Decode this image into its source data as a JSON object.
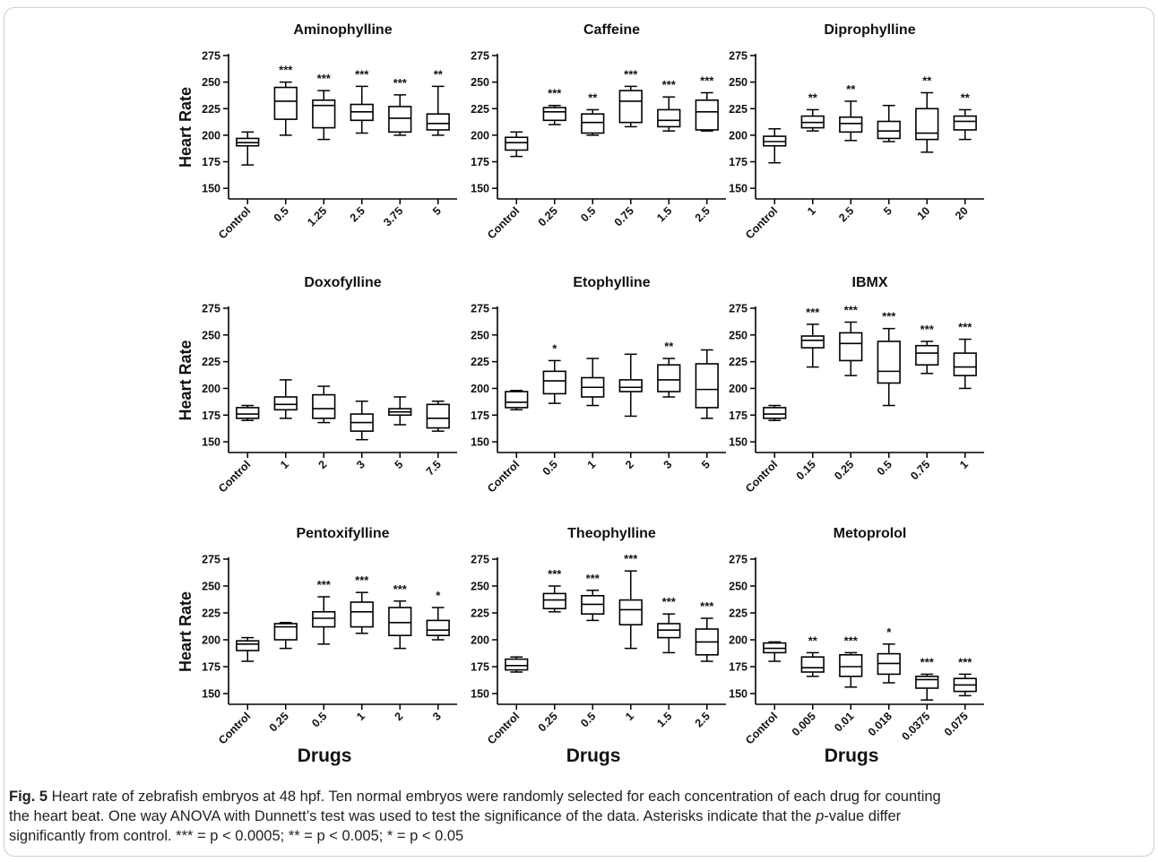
{
  "figure": {
    "caption": {
      "label": "Fig. 5",
      "line1": " Heart rate of zebrafish embryos at 48 hpf. Ten normal embryos were randomly selected for each concentration of each drug for counting",
      "line2": "the heart beat. One way ANOVA with Dunnett’s test was used to test the significance of the data. Asterisks indicate that the ",
      "pvar": "p",
      "line2b": "-value differ",
      "line3": "significantly from control. *** = p < 0.0005; ** = p < 0.005; * = p < 0.05"
    }
  },
  "chart_data": [
    {
      "type": "box",
      "title": "Aminophylline",
      "ylabel": "Heart Rate",
      "xlabel": "",
      "ylim": [
        140,
        275
      ],
      "yticks": [
        150,
        175,
        200,
        225,
        250,
        275
      ],
      "categories": [
        "Control",
        "0.5",
        "1.25",
        "2.5",
        "3.75",
        "5"
      ],
      "boxes": [
        {
          "min": 172,
          "q1": 190,
          "median": 193,
          "q3": 197,
          "max": 203,
          "sig": ""
        },
        {
          "min": 200,
          "q1": 215,
          "median": 232,
          "q3": 245,
          "max": 250,
          "sig": "***"
        },
        {
          "min": 196,
          "q1": 207,
          "median": 228,
          "q3": 233,
          "max": 242,
          "sig": "***"
        },
        {
          "min": 202,
          "q1": 214,
          "median": 222,
          "q3": 229,
          "max": 246,
          "sig": "***"
        },
        {
          "min": 200,
          "q1": 203,
          "median": 216,
          "q3": 227,
          "max": 238,
          "sig": "***"
        },
        {
          "min": 200,
          "q1": 205,
          "median": 211,
          "q3": 220,
          "max": 246,
          "sig": "**"
        }
      ]
    },
    {
      "type": "box",
      "title": "Caffeine",
      "ylabel": "",
      "xlabel": "",
      "ylim": [
        140,
        275
      ],
      "yticks": [
        150,
        175,
        200,
        225,
        250,
        275
      ],
      "categories": [
        "Control",
        "0.25",
        "0.5",
        "0.75",
        "1.5",
        "2.5"
      ],
      "boxes": [
        {
          "min": 180,
          "q1": 186,
          "median": 193,
          "q3": 198,
          "max": 203,
          "sig": ""
        },
        {
          "min": 210,
          "q1": 214,
          "median": 222,
          "q3": 226,
          "max": 228,
          "sig": "***"
        },
        {
          "min": 200,
          "q1": 202,
          "median": 212,
          "q3": 220,
          "max": 224,
          "sig": "**"
        },
        {
          "min": 208,
          "q1": 212,
          "median": 232,
          "q3": 242,
          "max": 246,
          "sig": "***"
        },
        {
          "min": 204,
          "q1": 208,
          "median": 214,
          "q3": 224,
          "max": 236,
          "sig": "***"
        },
        {
          "min": 204,
          "q1": 205,
          "median": 222,
          "q3": 233,
          "max": 240,
          "sig": "***"
        }
      ]
    },
    {
      "type": "box",
      "title": "Diprophylline",
      "ylabel": "",
      "xlabel": "",
      "ylim": [
        140,
        275
      ],
      "yticks": [
        150,
        175,
        200,
        225,
        250,
        275
      ],
      "categories": [
        "Control",
        "1",
        "2.5",
        "5",
        "10",
        "20"
      ],
      "boxes": [
        {
          "min": 174,
          "q1": 190,
          "median": 194,
          "q3": 199,
          "max": 206,
          "sig": ""
        },
        {
          "min": 204,
          "q1": 207,
          "median": 212,
          "q3": 218,
          "max": 224,
          "sig": "**"
        },
        {
          "min": 195,
          "q1": 203,
          "median": 211,
          "q3": 217,
          "max": 232,
          "sig": "**"
        },
        {
          "min": 194,
          "q1": 197,
          "median": 204,
          "q3": 213,
          "max": 228,
          "sig": ""
        },
        {
          "min": 184,
          "q1": 196,
          "median": 202,
          "q3": 225,
          "max": 240,
          "sig": "**"
        },
        {
          "min": 196,
          "q1": 205,
          "median": 213,
          "q3": 218,
          "max": 224,
          "sig": "**"
        }
      ]
    },
    {
      "type": "box",
      "title": "Doxofylline",
      "ylabel": "Heart Rate",
      "xlabel": "",
      "ylim": [
        140,
        275
      ],
      "yticks": [
        150,
        175,
        200,
        225,
        250,
        275
      ],
      "categories": [
        "Control",
        "1",
        "2",
        "3",
        "5",
        "7.5"
      ],
      "boxes": [
        {
          "min": 170,
          "q1": 172,
          "median": 176,
          "q3": 182,
          "max": 184,
          "sig": ""
        },
        {
          "min": 172,
          "q1": 180,
          "median": 185,
          "q3": 192,
          "max": 208,
          "sig": ""
        },
        {
          "min": 168,
          "q1": 172,
          "median": 181,
          "q3": 194,
          "max": 202,
          "sig": ""
        },
        {
          "min": 152,
          "q1": 160,
          "median": 168,
          "q3": 176,
          "max": 188,
          "sig": ""
        },
        {
          "min": 166,
          "q1": 175,
          "median": 178,
          "q3": 181,
          "max": 192,
          "sig": ""
        },
        {
          "min": 160,
          "q1": 163,
          "median": 172,
          "q3": 185,
          "max": 188,
          "sig": ""
        }
      ]
    },
    {
      "type": "box",
      "title": "Etophylline",
      "ylabel": "",
      "xlabel": "",
      "ylim": [
        140,
        275
      ],
      "yticks": [
        150,
        175,
        200,
        225,
        250,
        275
      ],
      "categories": [
        "Control",
        "0.5",
        "1",
        "2",
        "3",
        "5"
      ],
      "boxes": [
        {
          "min": 180,
          "q1": 182,
          "median": 187,
          "q3": 197,
          "max": 198,
          "sig": ""
        },
        {
          "min": 186,
          "q1": 195,
          "median": 207,
          "q3": 216,
          "max": 226,
          "sig": "*"
        },
        {
          "min": 184,
          "q1": 192,
          "median": 201,
          "q3": 210,
          "max": 228,
          "sig": ""
        },
        {
          "min": 174,
          "q1": 197,
          "median": 201,
          "q3": 208,
          "max": 232,
          "sig": ""
        },
        {
          "min": 192,
          "q1": 197,
          "median": 208,
          "q3": 222,
          "max": 228,
          "sig": "**"
        },
        {
          "min": 172,
          "q1": 182,
          "median": 199,
          "q3": 223,
          "max": 236,
          "sig": ""
        }
      ]
    },
    {
      "type": "box",
      "title": "IBMX",
      "ylabel": "",
      "xlabel": "",
      "ylim": [
        140,
        275
      ],
      "yticks": [
        150,
        175,
        200,
        225,
        250,
        275
      ],
      "categories": [
        "Control",
        "0.15",
        "0.25",
        "0.5",
        "0.75",
        "1"
      ],
      "boxes": [
        {
          "min": 170,
          "q1": 172,
          "median": 176,
          "q3": 182,
          "max": 184,
          "sig": ""
        },
        {
          "min": 220,
          "q1": 238,
          "median": 245,
          "q3": 249,
          "max": 260,
          "sig": "***"
        },
        {
          "min": 212,
          "q1": 226,
          "median": 242,
          "q3": 252,
          "max": 262,
          "sig": "***"
        },
        {
          "min": 184,
          "q1": 205,
          "median": 216,
          "q3": 244,
          "max": 256,
          "sig": "***"
        },
        {
          "min": 214,
          "q1": 222,
          "median": 233,
          "q3": 240,
          "max": 244,
          "sig": "***"
        },
        {
          "min": 200,
          "q1": 212,
          "median": 220,
          "q3": 233,
          "max": 246,
          "sig": "***"
        }
      ]
    },
    {
      "type": "box",
      "title": "Pentoxifylline",
      "ylabel": "Heart Rate",
      "xlabel": "Drugs",
      "ylim": [
        140,
        275
      ],
      "yticks": [
        150,
        175,
        200,
        225,
        250,
        275
      ],
      "categories": [
        "Control",
        "0.25",
        "0.5",
        "1",
        "2",
        "3"
      ],
      "boxes": [
        {
          "min": 180,
          "q1": 190,
          "median": 196,
          "q3": 199,
          "max": 202,
          "sig": ""
        },
        {
          "min": 192,
          "q1": 200,
          "median": 212,
          "q3": 215,
          "max": 216,
          "sig": ""
        },
        {
          "min": 196,
          "q1": 212,
          "median": 220,
          "q3": 226,
          "max": 240,
          "sig": "***"
        },
        {
          "min": 206,
          "q1": 212,
          "median": 226,
          "q3": 235,
          "max": 244,
          "sig": "***"
        },
        {
          "min": 192,
          "q1": 204,
          "median": 216,
          "q3": 230,
          "max": 236,
          "sig": "***"
        },
        {
          "min": 200,
          "q1": 204,
          "median": 209,
          "q3": 218,
          "max": 230,
          "sig": "*"
        }
      ]
    },
    {
      "type": "box",
      "title": "Theophylline",
      "ylabel": "",
      "xlabel": "Drugs",
      "ylim": [
        140,
        275
      ],
      "yticks": [
        150,
        175,
        200,
        225,
        250,
        275
      ],
      "categories": [
        "Control",
        "0.25",
        "0.5",
        "1",
        "1.5",
        "2.5"
      ],
      "boxes": [
        {
          "min": 170,
          "q1": 172,
          "median": 176,
          "q3": 182,
          "max": 184,
          "sig": ""
        },
        {
          "min": 226,
          "q1": 229,
          "median": 237,
          "q3": 243,
          "max": 250,
          "sig": "***"
        },
        {
          "min": 218,
          "q1": 224,
          "median": 233,
          "q3": 241,
          "max": 246,
          "sig": "***"
        },
        {
          "min": 192,
          "q1": 214,
          "median": 228,
          "q3": 237,
          "max": 264,
          "sig": "***"
        },
        {
          "min": 188,
          "q1": 202,
          "median": 209,
          "q3": 215,
          "max": 224,
          "sig": "***"
        },
        {
          "min": 180,
          "q1": 186,
          "median": 198,
          "q3": 210,
          "max": 220,
          "sig": "***"
        }
      ]
    },
    {
      "type": "box",
      "title": "Metoprolol",
      "ylabel": "",
      "xlabel": "Drugs",
      "ylim": [
        140,
        275
      ],
      "yticks": [
        150,
        175,
        200,
        225,
        250,
        275
      ],
      "categories": [
        "Control",
        "0.005",
        "0.01",
        "0.018",
        "0.0375",
        "0.075"
      ],
      "boxes": [
        {
          "min": 180,
          "q1": 188,
          "median": 192,
          "q3": 197,
          "max": 198,
          "sig": ""
        },
        {
          "min": 166,
          "q1": 170,
          "median": 174,
          "q3": 184,
          "max": 188,
          "sig": "**"
        },
        {
          "min": 156,
          "q1": 166,
          "median": 175,
          "q3": 186,
          "max": 188,
          "sig": "***"
        },
        {
          "min": 160,
          "q1": 168,
          "median": 178,
          "q3": 187,
          "max": 196,
          "sig": "*"
        },
        {
          "min": 144,
          "q1": 155,
          "median": 163,
          "q3": 166,
          "max": 168,
          "sig": "***"
        },
        {
          "min": 148,
          "q1": 152,
          "median": 158,
          "q3": 164,
          "max": 168,
          "sig": "***"
        }
      ]
    }
  ]
}
